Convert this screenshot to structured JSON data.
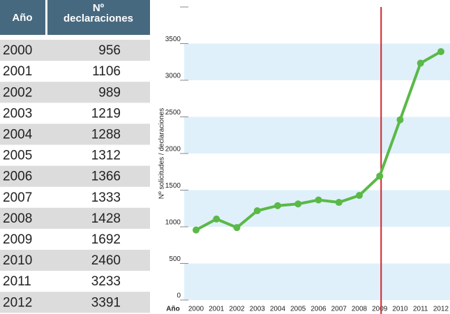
{
  "table": {
    "headers": [
      "Año",
      [
        "Nº",
        "declaraciones"
      ]
    ],
    "rows": [
      [
        "2000",
        956
      ],
      [
        "2001",
        1106
      ],
      [
        "2002",
        989
      ],
      [
        "2003",
        1219
      ],
      [
        "2004",
        1288
      ],
      [
        "2005",
        1312
      ],
      [
        "2006",
        1366
      ],
      [
        "2007",
        1333
      ],
      [
        "2008",
        1428
      ],
      [
        "2009",
        1692
      ],
      [
        "2010",
        2460
      ],
      [
        "2011",
        3233
      ],
      [
        "2012",
        3391
      ]
    ]
  },
  "chart_data": {
    "type": "line",
    "xlabel": "Año",
    "ylabel": "Nº solicitudes / declaraciones",
    "categories": [
      "2000",
      "2001",
      "2002",
      "2003",
      "2004",
      "2005",
      "2006",
      "2007",
      "2008",
      "2009",
      "2010",
      "2011",
      "2012"
    ],
    "values": [
      956,
      1106,
      989,
      1219,
      1288,
      1312,
      1366,
      1333,
      1428,
      1692,
      2460,
      3233,
      3391
    ],
    "color": "#5ab947",
    "ylim": [
      0,
      4000
    ],
    "yticks": [
      0,
      500,
      1000,
      1500,
      2000,
      2500,
      3000,
      3500
    ],
    "bands": true,
    "band_color": "#dff0fa",
    "highlight_x": "2009",
    "highlight_color": "#d0252b"
  }
}
